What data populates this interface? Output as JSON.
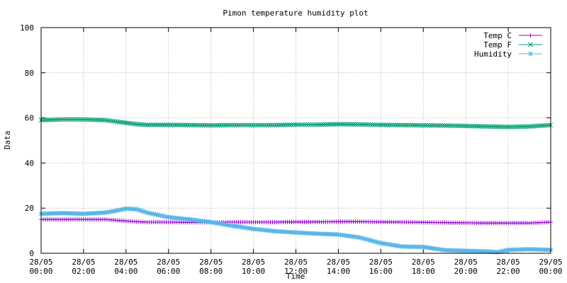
{
  "chart_data": {
    "type": "line",
    "title": "Pimon temperature  humidity plot",
    "xlabel": "Time",
    "ylabel": "Data",
    "ylim": [
      0,
      100
    ],
    "xlim_hours": [
      0,
      24
    ],
    "grid": true,
    "legend_position": "top-right",
    "y_ticks": [
      "0",
      "20",
      "40",
      "60",
      "80",
      "100"
    ],
    "x_ticks": [
      {
        "hour": 0,
        "date": "28/05",
        "time": "00:00"
      },
      {
        "hour": 2,
        "date": "28/05",
        "time": "02:00"
      },
      {
        "hour": 4,
        "date": "28/05",
        "time": "04:00"
      },
      {
        "hour": 6,
        "date": "28/05",
        "time": "06:00"
      },
      {
        "hour": 8,
        "date": "28/05",
        "time": "08:00"
      },
      {
        "hour": 10,
        "date": "28/05",
        "time": "10:00"
      },
      {
        "hour": 12,
        "date": "28/05",
        "time": "12:00"
      },
      {
        "hour": 14,
        "date": "28/05",
        "time": "14:00"
      },
      {
        "hour": 16,
        "date": "28/05",
        "time": "16:00"
      },
      {
        "hour": 18,
        "date": "28/05",
        "time": "18:00"
      },
      {
        "hour": 20,
        "date": "28/05",
        "time": "20:00"
      },
      {
        "hour": 22,
        "date": "28/05",
        "time": "22:00"
      },
      {
        "hour": 24,
        "date": "29/05",
        "time": "00:00"
      }
    ],
    "series": [
      {
        "name": "Temp C",
        "color": "#9400d3",
        "marker": "plus",
        "x": [
          0,
          1,
          2,
          3,
          4,
          4.5,
          5,
          6,
          7,
          8,
          9,
          10,
          11,
          12,
          13,
          14,
          15,
          16,
          17,
          18,
          19,
          20,
          21,
          22,
          23,
          24
        ],
        "y": [
          15,
          15,
          15,
          15,
          14.3,
          14,
          13.8,
          13.8,
          13.7,
          13.7,
          13.8,
          13.8,
          13.8,
          13.9,
          13.9,
          14,
          14,
          13.9,
          13.8,
          13.7,
          13.6,
          13.5,
          13.4,
          13.4,
          13.4,
          13.8
        ]
      },
      {
        "name": "Temp F",
        "color": "#009e73",
        "marker": "cross",
        "x": [
          0,
          1,
          2,
          3,
          4,
          4.5,
          5,
          6,
          7,
          8,
          9,
          10,
          11,
          12,
          13,
          14,
          15,
          16,
          17,
          18,
          19,
          20,
          21,
          22,
          23,
          24
        ],
        "y": [
          59,
          59.3,
          59.3,
          59,
          57.8,
          57.2,
          56.9,
          56.9,
          56.8,
          56.7,
          56.8,
          56.8,
          56.8,
          57,
          57,
          57.2,
          57.1,
          56.9,
          56.8,
          56.7,
          56.6,
          56.4,
          56.2,
          56,
          56.2,
          56.8
        ]
      },
      {
        "name": "Humidity",
        "color": "#56b4e9",
        "marker": "star",
        "x": [
          0,
          1,
          2,
          3,
          3.5,
          4,
          4.5,
          5,
          6,
          7,
          8,
          9,
          10,
          11,
          12,
          13,
          14,
          15,
          16,
          17,
          18,
          19,
          20,
          21,
          21.5,
          22,
          23,
          24
        ],
        "y": [
          17.5,
          17.8,
          17.5,
          18,
          18.8,
          19.8,
          19.5,
          18,
          16,
          15,
          13.8,
          12.2,
          10.8,
          9.8,
          9.2,
          8.7,
          8.3,
          7,
          4.5,
          3,
          2.8,
          1.4,
          1.1,
          0.8,
          0.5,
          1.5,
          1.8,
          1.5
        ]
      }
    ]
  }
}
